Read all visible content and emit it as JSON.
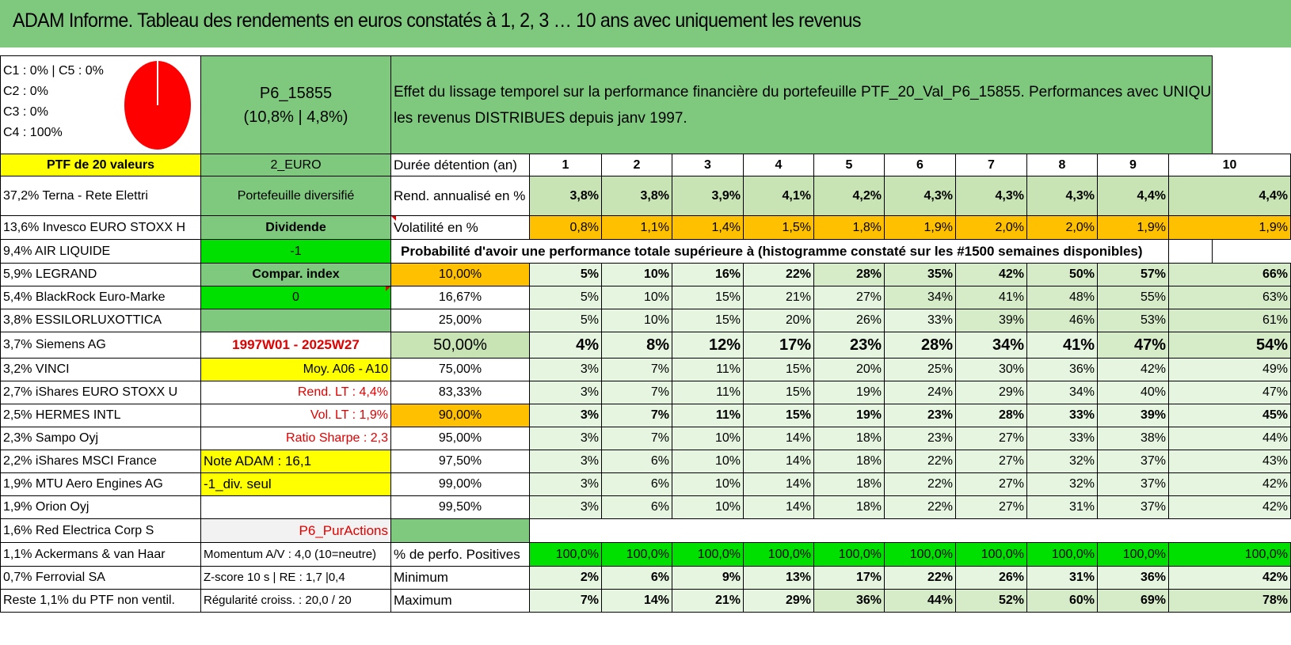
{
  "title": "ADAM Informe. Tableau des rendements en euros constatés à 1, 2, 3 … 10 ans avec uniquement les revenus",
  "legend": {
    "c1c5": "C1 : 0% | C5 : 0%",
    "c2": "C2 : 0%",
    "c3": "C3 : 0%",
    "c4": "C4 : 100%"
  },
  "portfolio": {
    "code": "P6_15855",
    "stats": "(10,8% | 4,8%)",
    "description_line1": "Effet du lissage temporel sur la performance financière du portefeuille PTF_20_Val_P6_15855. Performances avec UNIQUEMENT",
    "description_line2": "les revenus DISTRIBUES depuis janv 1997."
  },
  "colors": {
    "pie": "#ff0000",
    "header_green": "#7fc97f",
    "highlight_yellow": "#ffff00",
    "highlight_orange": "#ffc000"
  },
  "header_row": {
    "ptf": "PTF de 20 valeurs",
    "currency": "2_EURO",
    "duration_label": "Durée détention (an)",
    "years": [
      "1",
      "2",
      "3",
      "4",
      "5",
      "6",
      "7",
      "8",
      "9",
      "10"
    ]
  },
  "rend_row": {
    "holding": "37,2% Terna - Rete Elettri",
    "info": "Portefeuille diversifié",
    "label": "Rend. annualisé en %",
    "values": [
      "3,8%",
      "3,8%",
      "3,9%",
      "4,1%",
      "4,2%",
      "4,3%",
      "4,3%",
      "4,3%",
      "4,4%",
      "4,4%"
    ]
  },
  "vol_row": {
    "holding": "13,6% Invesco EURO STOXX H",
    "info": "Dividende",
    "label": "Volatilité en %",
    "values": [
      "0,8%",
      "1,1%",
      "1,4%",
      "1,5%",
      "1,8%",
      "1,9%",
      "2,0%",
      "2,0%",
      "1,9%",
      "1,9%"
    ]
  },
  "prob_row": {
    "holding": "9,4% AIR LIQUIDE",
    "info": "-1",
    "label": "Probabilité d'avoir une performance totale supérieure à (histogramme constaté sur les #1500 semaines disponibles)"
  },
  "quantile_rows": [
    {
      "holding": "5,9% LEGRAND",
      "info": "Compar. index",
      "q": "10,00%",
      "values": [
        "5%",
        "10%",
        "16%",
        "22%",
        "28%",
        "35%",
        "42%",
        "50%",
        "57%",
        "66%"
      ]
    },
    {
      "holding": "5,4% BlackRock Euro-Marke",
      "info": "0",
      "q": "16,67%",
      "values": [
        "5%",
        "10%",
        "15%",
        "21%",
        "27%",
        "34%",
        "41%",
        "48%",
        "55%",
        "63%"
      ]
    },
    {
      "holding": "3,8% ESSILORLUXOTTICA",
      "info": "",
      "q": "25,00%",
      "values": [
        "5%",
        "10%",
        "15%",
        "20%",
        "26%",
        "33%",
        "39%",
        "46%",
        "53%",
        "61%"
      ]
    },
    {
      "holding": "3,7% Siemens AG",
      "info": "1997W01 - 2025W27",
      "q": "50,00%",
      "values": [
        "4%",
        "8%",
        "12%",
        "17%",
        "23%",
        "28%",
        "34%",
        "41%",
        "47%",
        "54%"
      ]
    },
    {
      "holding": "3,2% VINCI",
      "info": "Moy. A06 - A10",
      "q": "75,00%",
      "values": [
        "3%",
        "7%",
        "11%",
        "15%",
        "20%",
        "25%",
        "30%",
        "36%",
        "42%",
        "49%"
      ]
    },
    {
      "holding": "2,7% iShares EURO STOXX U",
      "info": "Rend. LT : 4,4%",
      "q": "83,33%",
      "values": [
        "3%",
        "7%",
        "11%",
        "15%",
        "19%",
        "24%",
        "29%",
        "34%",
        "40%",
        "47%"
      ]
    },
    {
      "holding": "2,5% HERMES INTL",
      "info": "Vol. LT : 1,9%",
      "q": "90,00%",
      "values": [
        "3%",
        "7%",
        "11%",
        "15%",
        "19%",
        "23%",
        "28%",
        "33%",
        "39%",
        "45%"
      ]
    },
    {
      "holding": "2,3% Sampo Oyj",
      "info": "Ratio Sharpe : 2,3",
      "q": "95,00%",
      "values": [
        "3%",
        "7%",
        "10%",
        "14%",
        "18%",
        "23%",
        "27%",
        "33%",
        "38%",
        "44%"
      ]
    },
    {
      "holding": "2,2% iShares MSCI France",
      "info": "Note ADAM : 16,1",
      "q": "97,50%",
      "values": [
        "3%",
        "6%",
        "10%",
        "14%",
        "18%",
        "22%",
        "27%",
        "32%",
        "37%",
        "43%"
      ]
    },
    {
      "holding": "1,9% MTU Aero Engines AG",
      "info": "-1_div. seul",
      "q": "99,00%",
      "values": [
        "3%",
        "6%",
        "10%",
        "14%",
        "18%",
        "22%",
        "27%",
        "32%",
        "37%",
        "42%"
      ]
    },
    {
      "holding": "1,9% Orion Oyj",
      "info": "",
      "q": "99,50%",
      "values": [
        "3%",
        "6%",
        "10%",
        "14%",
        "18%",
        "22%",
        "27%",
        "31%",
        "37%",
        "42%"
      ]
    }
  ],
  "extra_row": {
    "holding": "1,6% Red Electrica Corp S",
    "info": "P6_PurActions"
  },
  "stats_rows": [
    {
      "holding": "1,1% Ackermans & van Haar",
      "info": "Momentum A/V : 4,0 (10=neutre)",
      "label": "% de perfo. Positives",
      "values": [
        "100,0%",
        "100,0%",
        "100,0%",
        "100,0%",
        "100,0%",
        "100,0%",
        "100,0%",
        "100,0%",
        "100,0%",
        "100,0%"
      ]
    },
    {
      "holding": "0,7% Ferrovial SA",
      "info": "Z-score 10 s | RE : 1,7 |0,4",
      "label": "Minimum",
      "values": [
        "2%",
        "6%",
        "9%",
        "13%",
        "17%",
        "22%",
        "26%",
        "31%",
        "36%",
        "42%"
      ]
    },
    {
      "holding": "Reste 1,1% du PTF non ventil.",
      "info": "Régularité croiss. : 20,0 / 20",
      "label": "Maximum",
      "values": [
        "7%",
        "14%",
        "21%",
        "29%",
        "36%",
        "44%",
        "52%",
        "60%",
        "69%",
        "78%"
      ]
    }
  ]
}
